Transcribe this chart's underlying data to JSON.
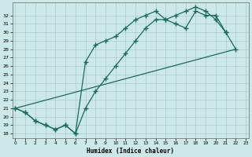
{
  "xlabel": "Humidex (Indice chaleur)",
  "bg_color": "#cce8e8",
  "grid_color": "#aacccc",
  "line_color": "#1a6b5a",
  "marker": "+",
  "markersize": 4,
  "linewidth": 0.9,
  "line1_x": [
    0,
    1,
    2,
    3,
    4,
    5,
    6,
    7,
    8,
    9,
    10,
    11,
    12,
    13,
    14,
    15,
    16,
    17,
    18,
    19,
    20,
    21
  ],
  "line1_y": [
    21.0,
    20.5,
    19.5,
    19.0,
    18.5,
    19.0,
    18.0,
    26.5,
    28.5,
    29.0,
    29.5,
    30.5,
    31.5,
    32.0,
    32.5,
    31.5,
    32.0,
    32.5,
    33.0,
    32.5,
    31.5,
    30.0
  ],
  "line2_x": [
    0,
    1,
    2,
    3,
    4,
    5,
    6,
    7,
    8,
    9,
    10,
    11,
    12,
    13,
    14,
    15,
    16,
    17,
    18,
    19,
    20,
    21,
    22
  ],
  "line2_y": [
    21.0,
    20.5,
    19.5,
    19.0,
    18.5,
    19.0,
    18.0,
    21.0,
    23.0,
    24.5,
    26.0,
    27.5,
    29.0,
    30.5,
    31.5,
    31.5,
    31.0,
    30.5,
    32.5,
    32.0,
    32.0,
    30.0,
    28.0
  ],
  "line3_x": [
    0,
    22
  ],
  "line3_y": [
    21.0,
    28.0
  ],
  "xlim": [
    -0.3,
    23.3
  ],
  "ylim": [
    17.5,
    33.5
  ],
  "xticks": [
    0,
    1,
    2,
    3,
    4,
    5,
    6,
    7,
    8,
    9,
    10,
    11,
    12,
    13,
    14,
    15,
    16,
    17,
    18,
    19,
    20,
    21,
    22,
    23
  ],
  "yticks": [
    18,
    19,
    20,
    21,
    22,
    23,
    24,
    25,
    26,
    27,
    28,
    29,
    30,
    31,
    32
  ]
}
